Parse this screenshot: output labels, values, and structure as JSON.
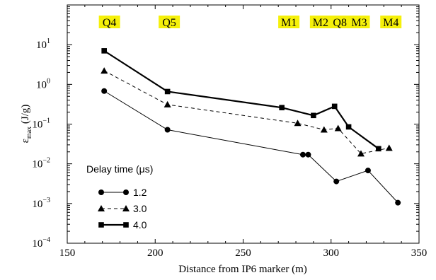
{
  "chart_data": {
    "type": "line",
    "title": "",
    "xlabel": "Distance from IP6 marker (m)",
    "ylabel_main": "ε",
    "ylabel_sub": "max",
    "ylabel_unit": " (J/g)",
    "xlim": [
      150,
      350
    ],
    "ylim": [
      0.0001,
      100
    ],
    "yscale": "log",
    "xticks": [
      150,
      200,
      250,
      300,
      350
    ],
    "yticks": [
      {
        "value": 0.0001,
        "base": "10",
        "exp": "−4"
      },
      {
        "value": 0.001,
        "base": "10",
        "exp": "−3"
      },
      {
        "value": 0.01,
        "base": "10",
        "exp": "−2"
      },
      {
        "value": 0.1,
        "base": "10",
        "exp": "−1"
      },
      {
        "value": 1,
        "base": "10",
        "exp": "0"
      },
      {
        "value": 10,
        "base": "10",
        "exp": "1"
      }
    ],
    "grid": false,
    "legend": {
      "title": "Delay time (μs)",
      "placement": "bottom-left"
    },
    "series": [
      {
        "name": "1.2",
        "marker": "circle",
        "line": "solid",
        "x": [
          171,
          207,
          284,
          287,
          303,
          321,
          338
        ],
        "y": [
          0.68,
          0.072,
          0.017,
          0.017,
          0.0036,
          0.0068,
          0.00105
        ]
      },
      {
        "name": "3.0",
        "marker": "triangle",
        "line": "dashed",
        "x": [
          171,
          207,
          281,
          296,
          304,
          317,
          333
        ],
        "y": [
          2.2,
          0.31,
          0.105,
          0.072,
          0.078,
          0.018,
          0.025
        ]
      },
      {
        "name": "4.0",
        "marker": "square",
        "line": "solid-thick",
        "x": [
          171,
          207,
          272,
          290,
          302,
          310,
          327
        ],
        "y": [
          7.0,
          0.66,
          0.26,
          0.165,
          0.28,
          0.085,
          0.024
        ]
      }
    ],
    "annotations": [
      {
        "text": "Q4",
        "x": 174
      },
      {
        "text": "Q5",
        "x": 208
      },
      {
        "text": "M1",
        "x": 276
      },
      {
        "text": "M2",
        "x": 294
      },
      {
        "text": "Q8",
        "x": 305
      },
      {
        "text": "M3",
        "x": 316
      },
      {
        "text": "M4",
        "x": 334
      }
    ]
  },
  "colors": {
    "highlight": "#f5f00a",
    "ink": "#000000",
    "background": "#ffffff"
  }
}
